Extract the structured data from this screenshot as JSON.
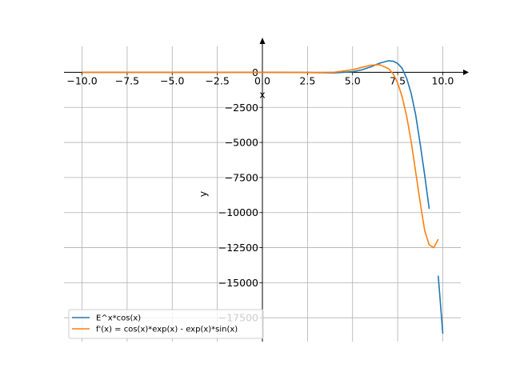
{
  "chart_data": {
    "type": "line",
    "title": "",
    "xlabel": "x",
    "ylabel": "y",
    "xlim": [
      -11.0,
      11.0
    ],
    "ylim": [
      -19200,
      1850
    ],
    "grid": true,
    "legend_position": "bottom-left",
    "x_ticks": [
      -10,
      -7.5,
      -5,
      -2.5,
      0,
      2.5,
      5,
      7.5,
      10
    ],
    "x_tick_labels": [
      "−10.0",
      "−7.5",
      "−5.0",
      "−2.5",
      "0.0",
      "2.5",
      "5.0",
      "7.5",
      "10.0"
    ],
    "y_ticks": [
      0,
      -2500,
      -5000,
      -7500,
      -10000,
      -12500,
      -15000,
      -17500
    ],
    "y_tick_labels": [
      "0",
      "−2500",
      "−5000",
      "−7500",
      "−10000",
      "−12500",
      "−15000",
      "−17500"
    ],
    "series": [
      {
        "name": "E^x*cos(x)",
        "color": "#1f77b4",
        "x": [
          -10,
          -8,
          -6,
          -4,
          -2,
          0,
          2,
          3,
          4,
          5,
          5.5,
          6,
          6.5,
          7,
          7.25,
          7.5,
          7.75,
          8,
          8.25,
          8.5,
          8.75,
          9,
          9.25,
          9.5,
          9.75,
          10
        ],
        "values": [
          0,
          0,
          0,
          0,
          0,
          1,
          -3,
          -20,
          -36,
          42,
          173,
          389,
          651,
          827,
          797,
          637,
          288,
          -436,
          -1510,
          -3034,
          -5130,
          -7352,
          -9730,
          null,
          -14500,
          -18630
        ]
      },
      {
        "name": "f'(x) = cos(x)*exp(x) - exp(x)*sin(x)",
        "color": "#ff7f0e",
        "x": [
          -10,
          -8,
          -6,
          -4,
          -2,
          0,
          2,
          3,
          4,
          5,
          5.5,
          6,
          6.5,
          7,
          7.25,
          7.5,
          7.75,
          8,
          8.25,
          8.5,
          8.75,
          9,
          9.25,
          9.5,
          9.75
        ],
        "values": [
          0,
          0,
          0,
          0,
          0,
          1,
          -10,
          -23,
          5,
          185,
          350,
          508,
          547,
          256,
          -110,
          -750,
          -1750,
          -3150,
          -4950,
          -7100,
          -9300,
          -11300,
          -12300,
          -12500,
          -11900
        ]
      }
    ]
  }
}
